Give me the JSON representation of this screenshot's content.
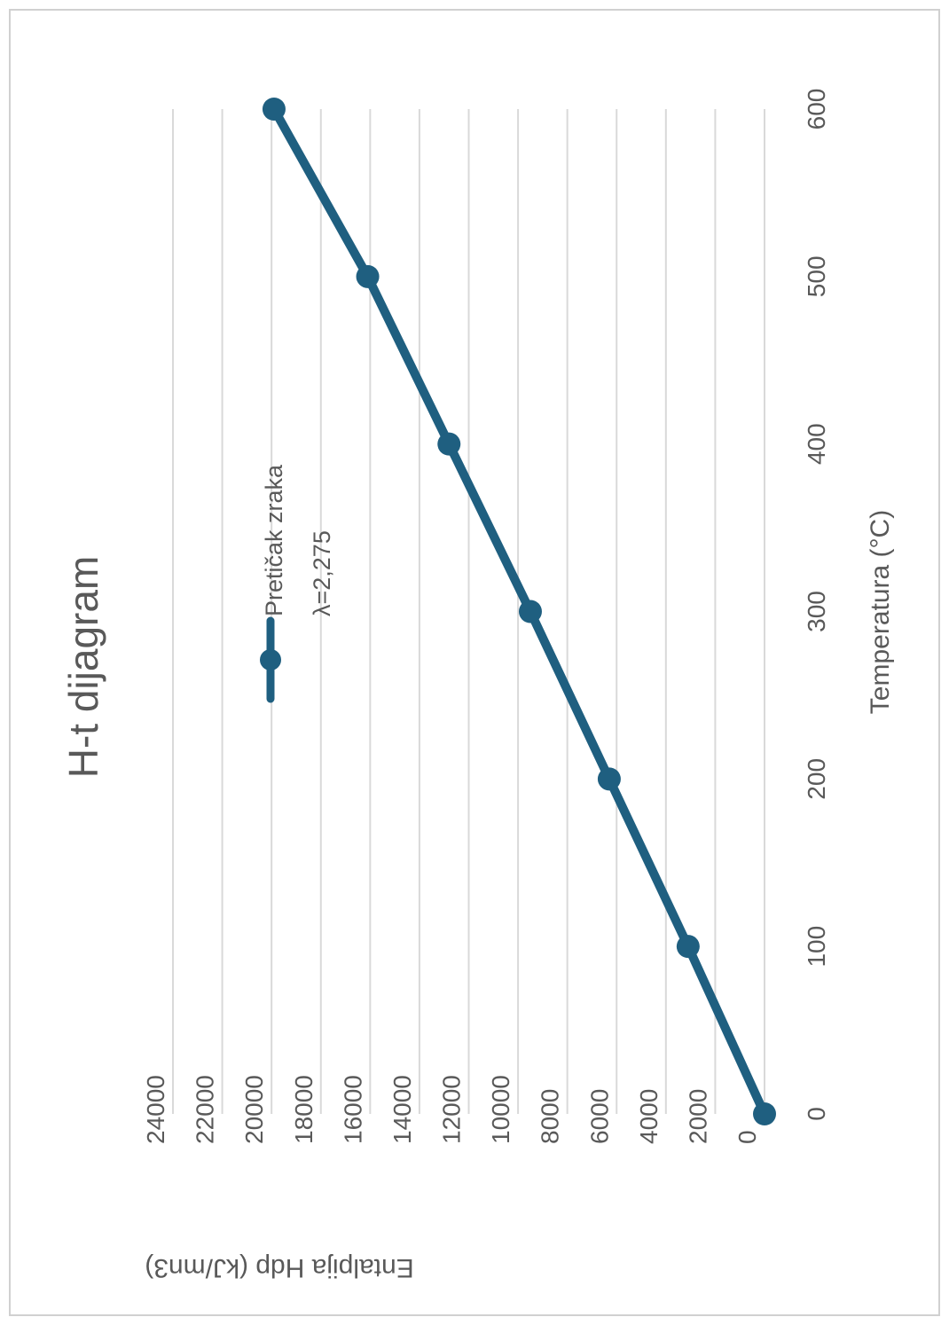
{
  "chart_data": {
    "type": "line",
    "title": "H-t dijagram",
    "xlabel": "Temperatura (°C)",
    "ylabel": "Entalpija Hdp (kJ/mn3)",
    "xlim": [
      0,
      600
    ],
    "ylim": [
      0,
      24000
    ],
    "x_ticks": [
      "0",
      "100",
      "200",
      "300",
      "400",
      "500",
      "600"
    ],
    "y_ticks": [
      "0",
      "2000",
      "4000",
      "6000",
      "8000",
      "10000",
      "12000",
      "14000",
      "16000",
      "18000",
      "20000",
      "22000",
      "24000"
    ],
    "grid": true,
    "legend_position": "top-right",
    "series": [
      {
        "name_line1": "Pretičak zraka",
        "name_line2": "λ=2,275",
        "color": "#1f5f80",
        "x": [
          0,
          100,
          200,
          300,
          400,
          500,
          600
        ],
        "y": [
          0,
          3100,
          6300,
          9500,
          12800,
          16100,
          19900
        ]
      }
    ]
  }
}
